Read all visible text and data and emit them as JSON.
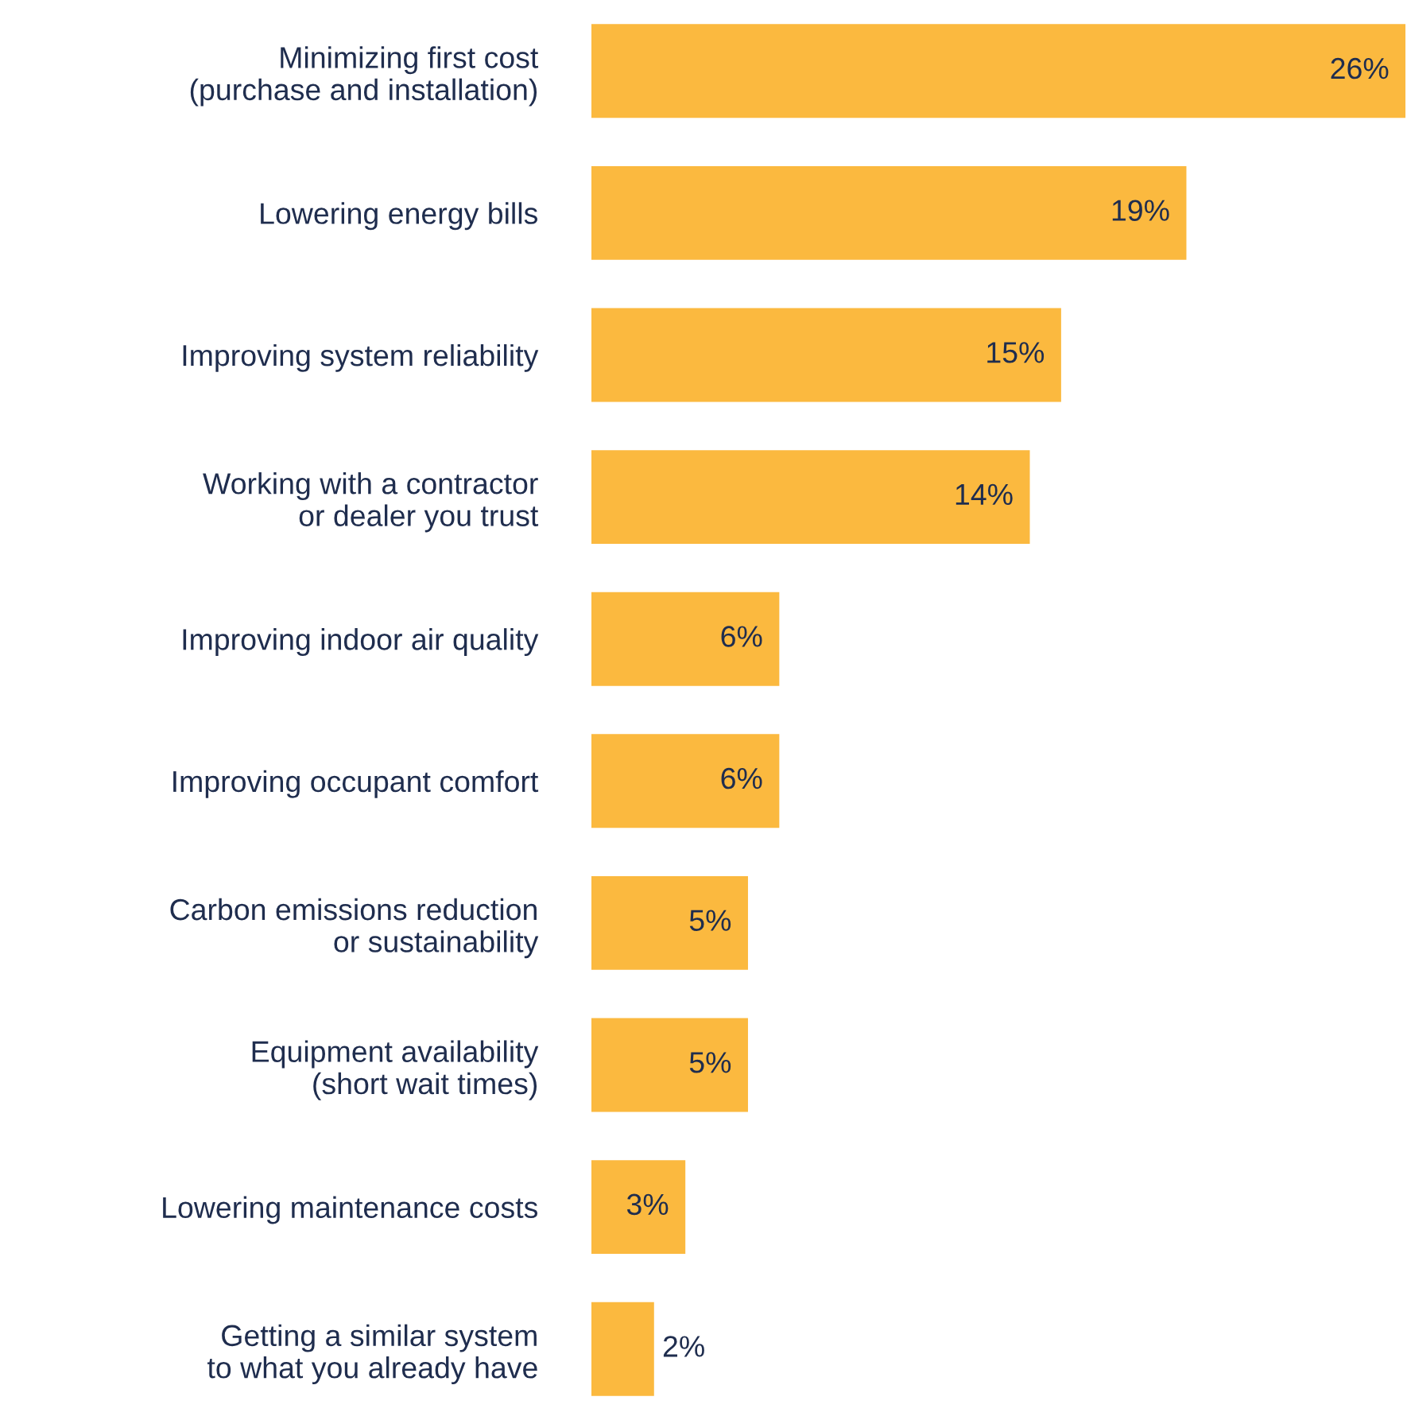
{
  "chart_data": {
    "type": "bar",
    "orientation": "horizontal",
    "categories": [
      "Minimizing first cost\n(purchase and installation)",
      "Lowering energy bills",
      "Improving system reliability",
      "Working with a contractor\nor dealer you trust",
      "Improving indoor air quality",
      "Improving occupant comfort",
      "Carbon emissions reduction\nor sustainability",
      "Equipment availability\n(short wait times)",
      "Lowering maintenance costs",
      "Getting a similar system\nto what you already have"
    ],
    "values": [
      26,
      19,
      15,
      14,
      6,
      6,
      5,
      5,
      3,
      2
    ],
    "value_labels": [
      "26%",
      "19%",
      "15%",
      "14%",
      "6%",
      "6%",
      "5%",
      "5%",
      "3%",
      "2%"
    ],
    "color": "#fbb93f",
    "grid": false,
    "legend": false
  }
}
